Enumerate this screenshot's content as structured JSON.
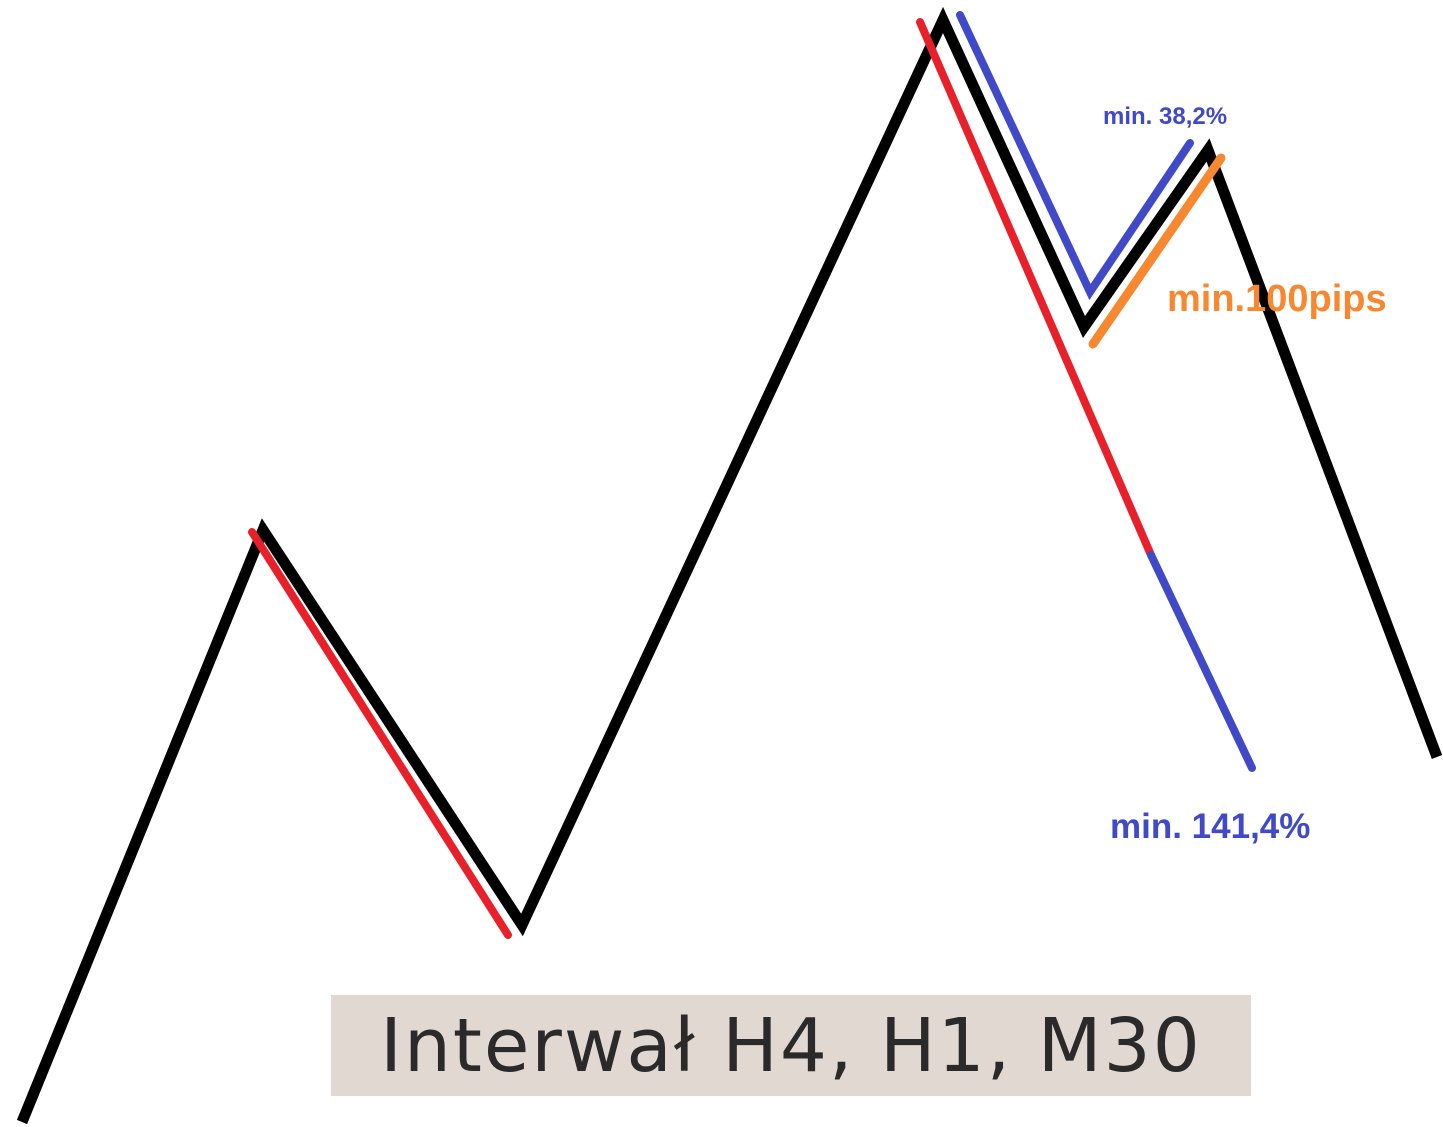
{
  "colors": {
    "price_line": "#000000",
    "impulse": "#e8202a",
    "fibo": "#4049c8",
    "pips": "#f7882f",
    "interval_bg": "#e0d8d1",
    "interval_text": "#2a2a2a"
  },
  "labels": {
    "retracement": "min. 38,2%",
    "pips": "min.100pips",
    "extension": "min. 141,4%"
  },
  "interval": {
    "text": "Interwał H4, H1, M30"
  }
}
